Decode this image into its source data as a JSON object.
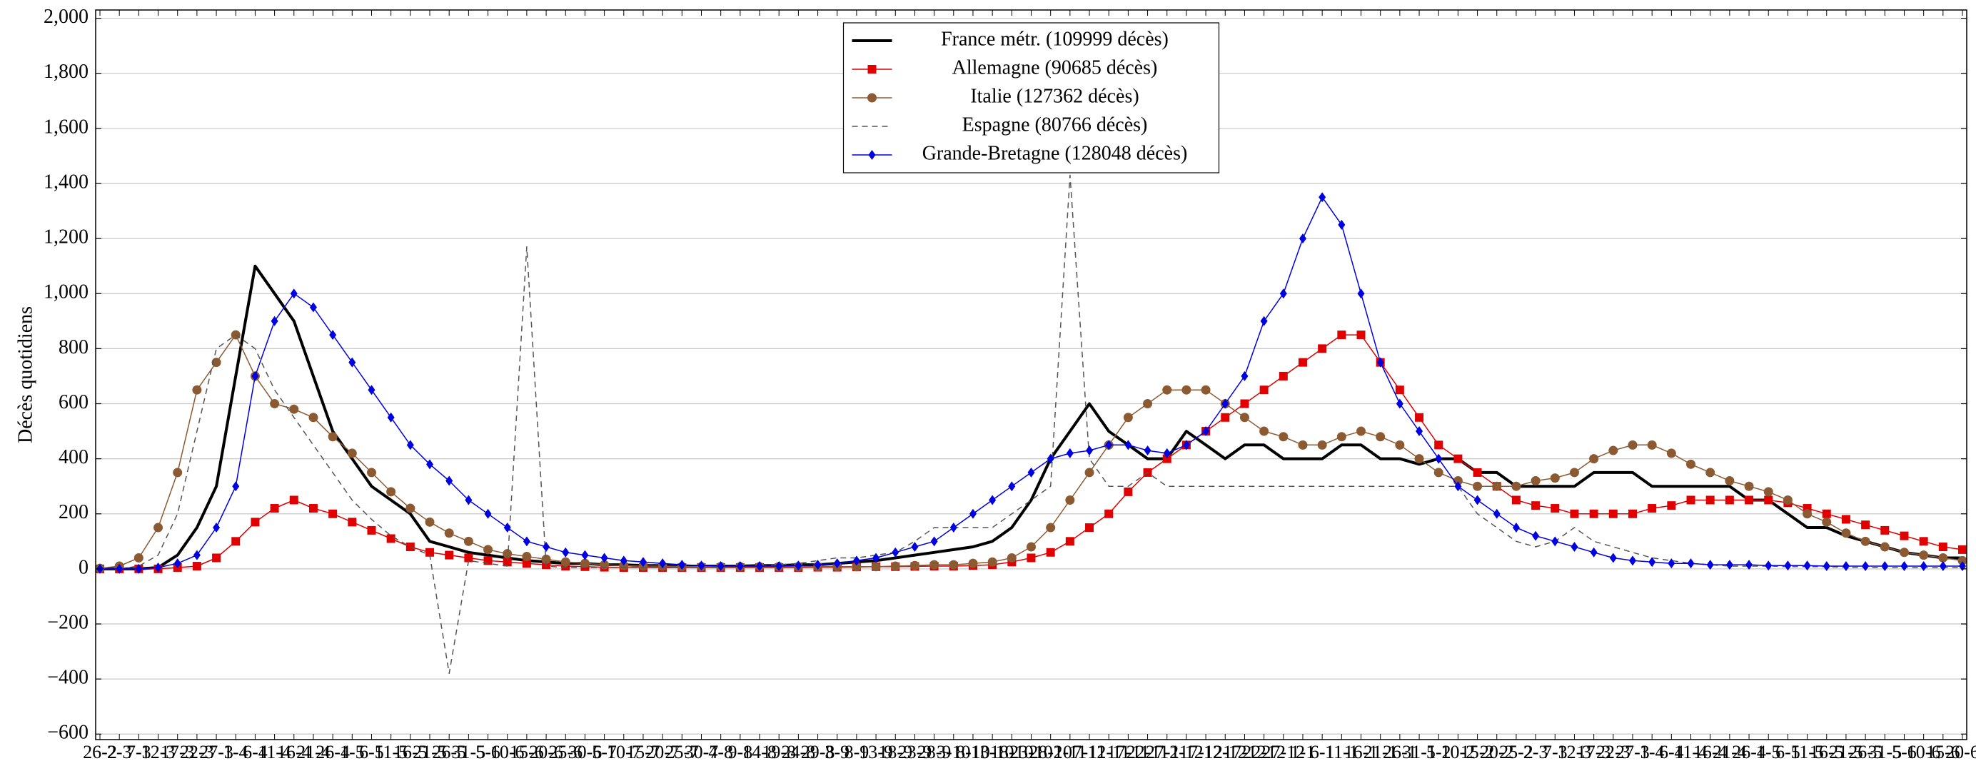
{
  "chart_data": {
    "type": "line",
    "y_label": "Décès quotidiens",
    "categories": [
      "26-2",
      "2-3",
      "7-3",
      "12-3",
      "17-3",
      "22-3",
      "27-3",
      "1-4",
      "6-4",
      "11-4",
      "16-4",
      "21-4",
      "26-4",
      "1-5",
      "6-5",
      "11-5",
      "16-5",
      "21-5",
      "26-5",
      "31-5",
      "5-6",
      "10-6",
      "15-6",
      "20-6",
      "25-6",
      "30-6",
      "5-7",
      "10-7",
      "15-7",
      "20-7",
      "25-7",
      "30-7",
      "4-8",
      "9-8",
      "14-8",
      "19-8",
      "24-8",
      "29-8",
      "3-9",
      "8-9",
      "13-9",
      "18-9",
      "23-9",
      "28-9",
      "3-10",
      "8-10",
      "13-10",
      "18-10",
      "23-10",
      "28-10",
      "2-11",
      "7-11",
      "12-11",
      "17-11",
      "22-11",
      "27-11",
      "2-12",
      "7-12",
      "12-12",
      "17-12",
      "22-12",
      "27-12",
      "1-1",
      "6-1",
      "11-1",
      "16-1",
      "21-1",
      "26-1",
      "31-1",
      "5-2",
      "10-2",
      "15-2",
      "20-2",
      "25-2",
      "2-3",
      "7-3",
      "12-3",
      "17-3",
      "22-3",
      "27-3",
      "1-4",
      "6-4",
      "11-4",
      "16-4",
      "21-4",
      "26-4",
      "1-5",
      "6-5",
      "11-5",
      "16-5",
      "21-5",
      "26-5",
      "31-5",
      "5-6",
      "10-6",
      "15-6",
      "20-6"
    ],
    "series": [
      {
        "name": "France métr. (109999 décès)",
        "color": "#000000",
        "marker": "none",
        "linestyle": "solid",
        "linewidth": 4,
        "values": [
          0,
          0,
          0,
          5,
          50,
          150,
          300,
          700,
          1100,
          1000,
          900,
          700,
          500,
          400,
          300,
          250,
          200,
          100,
          80,
          60,
          50,
          40,
          30,
          25,
          20,
          20,
          15,
          15,
          12,
          12,
          10,
          10,
          10,
          10,
          12,
          12,
          15,
          15,
          20,
          25,
          30,
          40,
          50,
          60,
          70,
          80,
          100,
          150,
          250,
          400,
          500,
          600,
          500,
          450,
          400,
          400,
          500,
          450,
          400,
          450,
          450,
          400,
          400,
          400,
          450,
          450,
          400,
          400,
          380,
          400,
          400,
          350,
          350,
          300,
          300,
          300,
          300,
          350,
          350,
          350,
          300,
          300,
          300,
          300,
          300,
          250,
          250,
          200,
          150,
          150,
          120,
          100,
          80,
          60,
          50,
          40,
          40
        ]
      },
      {
        "name": "Allemagne (90685 décès)",
        "color": "#e00000",
        "marker": "square",
        "linestyle": "solid",
        "linewidth": 1.5,
        "values": [
          0,
          0,
          0,
          0,
          5,
          10,
          40,
          100,
          170,
          220,
          250,
          220,
          200,
          170,
          140,
          110,
          80,
          60,
          50,
          40,
          30,
          25,
          20,
          15,
          10,
          8,
          6,
          5,
          5,
          5,
          5,
          5,
          5,
          5,
          5,
          5,
          5,
          6,
          6,
          7,
          8,
          8,
          9,
          10,
          10,
          12,
          15,
          25,
          40,
          60,
          100,
          150,
          200,
          280,
          350,
          400,
          450,
          500,
          550,
          600,
          650,
          700,
          750,
          800,
          850,
          850,
          750,
          650,
          550,
          450,
          400,
          350,
          300,
          250,
          230,
          220,
          200,
          200,
          200,
          200,
          220,
          230,
          250,
          250,
          250,
          250,
          250,
          240,
          220,
          200,
          180,
          160,
          140,
          120,
          100,
          80,
          70
        ]
      },
      {
        "name": "Italie (127362 décès)",
        "color": "#8c5a32",
        "marker": "circle",
        "linestyle": "solid",
        "linewidth": 1.5,
        "values": [
          2,
          10,
          40,
          150,
          350,
          650,
          750,
          850,
          700,
          600,
          580,
          550,
          480,
          420,
          350,
          280,
          220,
          170,
          130,
          100,
          70,
          55,
          45,
          35,
          25,
          20,
          15,
          12,
          10,
          10,
          8,
          8,
          8,
          8,
          8,
          8,
          8,
          8,
          8,
          8,
          8,
          10,
          12,
          15,
          15,
          20,
          25,
          40,
          80,
          150,
          250,
          350,
          450,
          550,
          600,
          650,
          650,
          650,
          600,
          550,
          500,
          480,
          450,
          450,
          480,
          500,
          480,
          450,
          400,
          350,
          320,
          300,
          300,
          300,
          320,
          330,
          350,
          400,
          430,
          450,
          450,
          420,
          380,
          350,
          320,
          300,
          280,
          250,
          200,
          170,
          130,
          100,
          80,
          60,
          50,
          40,
          30
        ]
      },
      {
        "name": "Espagne (80766 décès)",
        "color": "#555555",
        "marker": "none",
        "linestyle": "dashed",
        "linewidth": 1.5,
        "values": [
          0,
          0,
          10,
          50,
          200,
          500,
          800,
          850,
          800,
          650,
          550,
          450,
          350,
          250,
          180,
          120,
          80,
          50,
          -380,
          30,
          20,
          10,
          1170,
          10,
          5,
          5,
          5,
          5,
          5,
          5,
          5,
          5,
          5,
          10,
          10,
          15,
          20,
          30,
          40,
          40,
          50,
          60,
          100,
          150,
          150,
          150,
          150,
          200,
          250,
          300,
          1430,
          400,
          300,
          300,
          350,
          300,
          300,
          300,
          300,
          300,
          300,
          300,
          300,
          300,
          300,
          300,
          300,
          300,
          300,
          300,
          300,
          200,
          150,
          100,
          80,
          100,
          150,
          100,
          80,
          60,
          40,
          30,
          20,
          15,
          10,
          10,
          10,
          8,
          8,
          8,
          6,
          6,
          5,
          5,
          5,
          5,
          5
        ]
      },
      {
        "name": "Grande-Bretagne (128048 décès)",
        "color": "#0000e0",
        "marker": "diamond",
        "linestyle": "solid",
        "linewidth": 1.5,
        "values": [
          0,
          0,
          0,
          5,
          20,
          50,
          150,
          300,
          700,
          900,
          1000,
          950,
          850,
          750,
          650,
          550,
          450,
          380,
          320,
          250,
          200,
          150,
          100,
          80,
          60,
          50,
          40,
          30,
          25,
          20,
          15,
          12,
          10,
          10,
          10,
          10,
          12,
          15,
          20,
          30,
          40,
          60,
          80,
          100,
          150,
          200,
          250,
          300,
          350,
          400,
          420,
          430,
          450,
          450,
          430,
          420,
          450,
          500,
          600,
          700,
          900,
          1000,
          1200,
          1350,
          1250,
          1000,
          750,
          600,
          500,
          400,
          300,
          250,
          200,
          150,
          120,
          100,
          80,
          60,
          40,
          30,
          25,
          20,
          20,
          15,
          15,
          15,
          12,
          12,
          12,
          10,
          10,
          10,
          10,
          10,
          10,
          10,
          10
        ]
      }
    ],
    "ylim": [
      -620,
      2030
    ],
    "yticks": [
      {
        "value": -600,
        "label": "−600"
      },
      {
        "value": -400,
        "label": "−400"
      },
      {
        "value": -200,
        "label": "−200"
      },
      0,
      200,
      400,
      600,
      800,
      {
        "value": 1000,
        "label": "1,000"
      },
      {
        "value": 1200,
        "label": "1,200"
      },
      {
        "value": 1400,
        "label": "1,400"
      },
      {
        "value": 1600,
        "label": "1,600"
      },
      {
        "value": 1800,
        "label": "1,800"
      },
      {
        "value": 2000,
        "label": "2,000"
      }
    ],
    "grid": true,
    "legend": "upper center"
  }
}
